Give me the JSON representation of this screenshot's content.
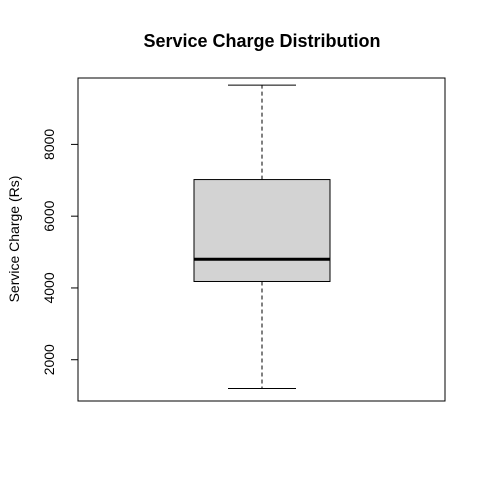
{
  "chart_data": {
    "type": "box",
    "title": "Service Charge Distribution",
    "xlabel": "",
    "ylabel": "Service Charge (Rs)",
    "ylim": [
      850,
      9850
    ],
    "yticks": [
      2000,
      4000,
      6000,
      8000
    ],
    "grid": false,
    "legend": "none",
    "box": {
      "min": 1200,
      "q1": 4180,
      "median": 4800,
      "q3": 7020,
      "max": 9650
    },
    "box_fill": "#d3d3d3",
    "line_color": "#000000"
  }
}
